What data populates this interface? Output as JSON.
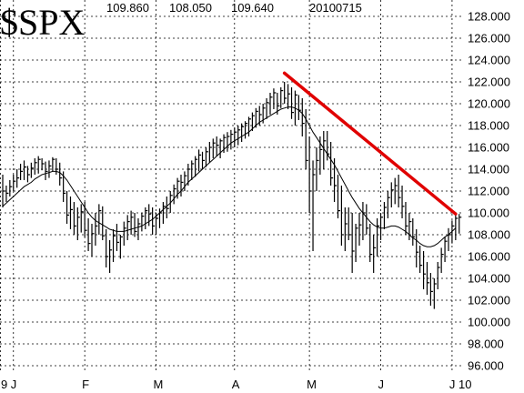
{
  "chart_data": {
    "type": "ohlc",
    "title": "$SPX",
    "header_values": [
      "109.860",
      "108.050",
      "109.640",
      "20100715"
    ],
    "ylim": [
      95.5,
      129.5
    ],
    "y_ticks": [
      {
        "label": "128.000",
        "value": 128
      },
      {
        "label": "126.000",
        "value": 126
      },
      {
        "label": "124.000",
        "value": 124
      },
      {
        "label": "122.000",
        "value": 122
      },
      {
        "label": "120.000",
        "value": 120
      },
      {
        "label": "118.000",
        "value": 118
      },
      {
        "label": "116.000",
        "value": 116
      },
      {
        "label": "114.000",
        "value": 114
      },
      {
        "label": "112.000",
        "value": 112
      },
      {
        "label": "110.000",
        "value": 110
      },
      {
        "label": "108.000",
        "value": 108
      },
      {
        "label": "106.000",
        "value": 106
      },
      {
        "label": "104.000",
        "value": 104
      },
      {
        "label": "102.000",
        "value": 102
      },
      {
        "label": "100.000",
        "value": 100
      },
      {
        "label": "98.000",
        "value": 98
      },
      {
        "label": "96.000",
        "value": 96
      }
    ],
    "x_ticks": [
      "9",
      "J",
      "F",
      "M",
      "A",
      "M",
      "J",
      "J 10"
    ],
    "grid": true,
    "colors": {
      "bars": "#000000",
      "moving_average": "#000000",
      "trendline": "#e00000",
      "grid": "#000000"
    },
    "prices": [
      [
        113.5,
        110.5,
        112.0
      ],
      [
        112.5,
        111.0,
        111.8
      ],
      [
        113.0,
        111.5,
        112.4
      ],
      [
        113.5,
        112.0,
        112.9
      ],
      [
        114.0,
        112.3,
        113.2
      ],
      [
        114.5,
        113.0,
        113.8
      ],
      [
        114.8,
        113.0,
        114.2
      ],
      [
        114.3,
        112.8,
        113.5
      ],
      [
        114.6,
        113.2,
        114.1
      ],
      [
        115.0,
        113.5,
        114.6
      ],
      [
        115.2,
        113.6,
        114.9
      ],
      [
        115.0,
        113.9,
        114.5
      ],
      [
        114.7,
        113.0,
        113.8
      ],
      [
        114.8,
        113.2,
        114.3
      ],
      [
        115.1,
        113.8,
        114.9
      ],
      [
        115.0,
        113.5,
        114.0
      ],
      [
        114.6,
        112.5,
        113.2
      ],
      [
        113.8,
        111.0,
        111.8
      ],
      [
        112.0,
        109.0,
        109.8
      ],
      [
        111.5,
        108.5,
        110.3
      ],
      [
        111.0,
        108.0,
        108.8
      ],
      [
        110.5,
        107.5,
        109.6
      ],
      [
        110.8,
        108.2,
        110.1
      ],
      [
        111.0,
        107.8,
        108.4
      ],
      [
        109.5,
        106.5,
        107.2
      ],
      [
        109.0,
        106.0,
        108.1
      ],
      [
        110.0,
        107.0,
        108.8
      ],
      [
        110.8,
        108.0,
        110.2
      ],
      [
        110.6,
        107.5,
        107.9
      ],
      [
        108.5,
        105.0,
        106.0
      ],
      [
        107.5,
        104.5,
        106.6
      ],
      [
        108.5,
        105.5,
        107.9
      ],
      [
        109.0,
        106.5,
        107.3
      ],
      [
        108.0,
        105.8,
        107.8
      ],
      [
        109.2,
        107.0,
        108.6
      ],
      [
        109.8,
        107.5,
        109.2
      ],
      [
        110.2,
        108.0,
        109.6
      ],
      [
        110.0,
        107.8,
        108.3
      ],
      [
        109.5,
        107.5,
        109.0
      ],
      [
        110.0,
        108.3,
        109.7
      ],
      [
        110.5,
        108.5,
        110.2
      ],
      [
        110.8,
        108.8,
        109.9
      ],
      [
        110.5,
        108.0,
        108.8
      ],
      [
        110.0,
        108.0,
        109.5
      ],
      [
        110.4,
        108.6,
        110.0
      ],
      [
        111.0,
        109.0,
        110.6
      ],
      [
        111.5,
        109.5,
        110.4
      ],
      [
        112.0,
        110.0,
        111.6
      ],
      [
        112.6,
        110.8,
        112.2
      ],
      [
        113.2,
        111.3,
        112.9
      ],
      [
        113.5,
        111.5,
        112.8
      ],
      [
        113.8,
        112.0,
        113.4
      ],
      [
        114.5,
        112.5,
        114.0
      ],
      [
        114.8,
        113.0,
        114.5
      ],
      [
        115.2,
        113.3,
        114.9
      ],
      [
        115.8,
        113.8,
        115.3
      ],
      [
        115.6,
        114.0,
        114.8
      ],
      [
        116.0,
        114.2,
        115.6
      ],
      [
        116.5,
        114.6,
        116.0
      ],
      [
        116.8,
        115.0,
        116.4
      ],
      [
        117.0,
        115.2,
        116.2
      ],
      [
        116.8,
        115.0,
        116.6
      ],
      [
        117.2,
        115.5,
        116.9
      ],
      [
        117.4,
        115.6,
        117.0
      ],
      [
        117.6,
        115.8,
        117.2
      ],
      [
        117.8,
        116.0,
        117.4
      ],
      [
        118.0,
        116.2,
        117.6
      ],
      [
        118.2,
        116.5,
        117.9
      ],
      [
        118.4,
        116.8,
        118.2
      ],
      [
        118.8,
        117.0,
        118.6
      ],
      [
        119.2,
        117.5,
        118.9
      ],
      [
        119.6,
        117.8,
        119.3
      ],
      [
        119.8,
        118.0,
        119.0
      ],
      [
        120.0,
        118.2,
        119.6
      ],
      [
        120.5,
        118.6,
        120.1
      ],
      [
        121.0,
        119.0,
        120.6
      ],
      [
        121.4,
        119.5,
        121.0
      ],
      [
        121.0,
        119.0,
        119.8
      ],
      [
        121.5,
        119.6,
        121.2
      ],
      [
        122.0,
        120.0,
        120.5
      ],
      [
        121.8,
        119.5,
        120.9
      ],
      [
        121.5,
        118.6,
        119.2
      ],
      [
        121.2,
        118.0,
        120.8
      ],
      [
        120.8,
        118.5,
        119.4
      ],
      [
        120.5,
        117.0,
        118.2
      ],
      [
        119.5,
        114.0,
        114.8
      ],
      [
        117.0,
        110.0,
        112.0
      ],
      [
        114.8,
        106.5,
        113.5
      ],
      [
        116.0,
        112.0,
        114.8
      ],
      [
        117.0,
        113.5,
        115.8
      ],
      [
        117.5,
        114.0,
        116.6
      ],
      [
        117.5,
        114.8,
        115.4
      ],
      [
        116.5,
        112.5,
        113.2
      ],
      [
        115.0,
        111.0,
        112.5
      ],
      [
        113.5,
        109.5,
        110.2
      ],
      [
        112.5,
        107.0,
        108.0
      ],
      [
        110.5,
        106.5,
        109.0
      ],
      [
        110.5,
        107.5,
        108.0
      ],
      [
        110.0,
        104.5,
        106.5
      ],
      [
        109.0,
        105.5,
        108.6
      ],
      [
        110.0,
        107.0,
        108.9
      ],
      [
        111.0,
        107.5,
        110.0
      ],
      [
        110.8,
        108.0,
        108.6
      ],
      [
        109.0,
        105.5,
        106.2
      ],
      [
        108.0,
        104.5,
        106.8
      ],
      [
        109.5,
        106.0,
        108.8
      ],
      [
        110.0,
        107.5,
        109.6
      ],
      [
        111.0,
        108.5,
        110.5
      ],
      [
        112.0,
        109.5,
        111.4
      ],
      [
        112.8,
        110.5,
        112.1
      ],
      [
        113.2,
        110.8,
        112.5
      ],
      [
        113.5,
        110.5,
        111.4
      ],
      [
        112.5,
        109.5,
        110.6
      ],
      [
        111.0,
        108.0,
        108.8
      ],
      [
        110.0,
        107.5,
        109.2
      ],
      [
        109.5,
        107.0,
        107.8
      ],
      [
        108.5,
        105.0,
        106.4
      ],
      [
        107.0,
        104.5,
        105.2
      ],
      [
        106.5,
        103.0,
        104.4
      ],
      [
        105.5,
        102.5,
        103.6
      ],
      [
        104.5,
        101.5,
        102.8
      ],
      [
        104.0,
        101.2,
        103.5
      ],
      [
        105.5,
        103.0,
        105.0
      ],
      [
        106.8,
        104.5,
        106.2
      ],
      [
        107.8,
        105.5,
        107.4
      ],
      [
        108.6,
        106.5,
        108.0
      ],
      [
        109.3,
        107.2,
        108.8
      ],
      [
        110.0,
        107.5,
        109.5
      ],
      [
        109.9,
        108.1,
        109.6
      ]
    ],
    "moving_average": [
      110.6,
      110.9,
      111.2,
      111.5,
      111.8,
      112.1,
      112.4,
      112.6,
      112.8,
      113.1,
      113.3,
      113.5,
      113.6,
      113.7,
      113.8,
      113.8,
      113.7,
      113.4,
      113.0,
      112.5,
      112.0,
      111.5,
      111.0,
      110.5,
      110.0,
      109.6,
      109.3,
      109.1,
      108.9,
      108.7,
      108.5,
      108.4,
      108.3,
      108.3,
      108.3,
      108.4,
      108.5,
      108.6,
      108.7,
      108.8,
      109.0,
      109.2,
      109.4,
      109.7,
      110.0,
      110.3,
      110.6,
      110.9,
      111.3,
      111.7,
      112.0,
      112.4,
      112.8,
      113.1,
      113.4,
      113.7,
      114.0,
      114.3,
      114.6,
      114.9,
      115.2,
      115.5,
      115.8,
      116.1,
      116.4,
      116.6,
      116.8,
      117.0,
      117.2,
      117.4,
      117.7,
      118.0,
      118.3,
      118.5,
      118.7,
      118.9,
      119.1,
      119.3,
      119.5,
      119.6,
      119.7,
      119.7,
      119.6,
      119.4,
      119.1,
      118.6,
      118.0,
      117.4,
      116.9,
      116.4,
      115.9,
      115.4,
      114.9,
      114.4,
      113.8,
      113.2,
      112.6,
      112.0,
      111.4,
      110.9,
      110.4,
      110.0,
      109.6,
      109.2,
      108.9,
      108.7,
      108.6,
      108.6,
      108.7,
      108.8,
      108.8,
      108.7,
      108.5,
      108.3,
      108.0,
      107.7,
      107.5,
      107.2,
      107.0,
      106.9,
      106.9,
      107.0,
      107.2,
      107.5,
      107.8,
      108.0,
      108.3,
      108.6
    ],
    "trendline": {
      "from": {
        "index": 79,
        "value": 122.8
      },
      "to": {
        "index": 127,
        "value": 109.9
      }
    },
    "month_boundaries": [
      {
        "label": "9",
        "index": -1
      },
      {
        "label": "J",
        "index": 3
      },
      {
        "label": "F",
        "index": 23
      },
      {
        "label": "M",
        "index": 43
      },
      {
        "label": "A",
        "index": 65
      },
      {
        "label": "M",
        "index": 86
      },
      {
        "label": "J",
        "index": 106
      },
      {
        "label": "J 10",
        "index": 126
      }
    ]
  }
}
